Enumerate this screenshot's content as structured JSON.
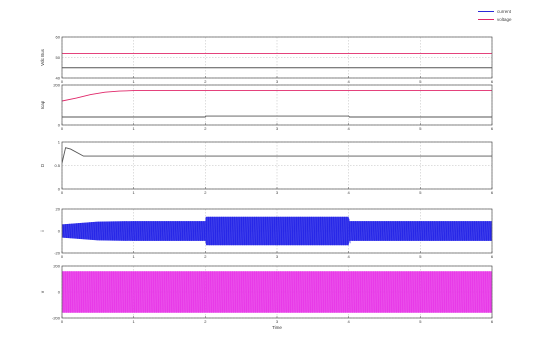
{
  "legend": [
    {
      "label": "current",
      "color": "#2a2ad8"
    },
    {
      "label": "voltage",
      "color": "#e0286a"
    }
  ],
  "colors": {
    "axis": "#555555",
    "grid": "#bdbdbd",
    "trace_red": "#e0286a",
    "trace_blue": "#1a1ae6",
    "trace_magenta": "#e62ee6"
  },
  "chart_data": [
    {
      "type": "line",
      "ylabel": "Vdc Bus",
      "xlabel": "",
      "xlim": [
        0,
        6
      ],
      "ylim": [
        40,
        60
      ],
      "yticks": [
        "60",
        "50",
        "40"
      ],
      "xticks": [
        "0",
        "1",
        "2",
        "3",
        "4",
        "5",
        "6"
      ],
      "grid": true,
      "series": [
        {
          "color": "#e0286a",
          "x": [
            0,
            6
          ],
          "y": [
            52,
            52
          ]
        },
        {
          "color": "#555555",
          "x": [
            0,
            6
          ],
          "y": [
            45,
            45
          ]
        }
      ]
    },
    {
      "type": "line",
      "ylabel": "Icap",
      "xlabel": "",
      "xlim": [
        0,
        6
      ],
      "ylim": [
        -50,
        200
      ],
      "yticks": [
        "200",
        "0"
      ],
      "xticks": [
        "0",
        "1",
        "2",
        "3",
        "4",
        "5",
        "6"
      ],
      "grid": true,
      "series": [
        {
          "color": "#e0286a",
          "x": [
            0,
            0.2,
            0.4,
            0.6,
            0.8,
            1.0,
            6.0
          ],
          "y": [
            100,
            118,
            140,
            155,
            162,
            165,
            165
          ]
        },
        {
          "color": "#555555",
          "x": [
            0,
            2,
            2.01,
            4,
            4.01,
            6
          ],
          "y": [
            0,
            0,
            6,
            6,
            0,
            0
          ]
        }
      ]
    },
    {
      "type": "line",
      "ylabel": "D",
      "xlabel": "",
      "xlim": [
        0,
        6
      ],
      "ylim": [
        0,
        1
      ],
      "yticks": [
        "1",
        "0.5",
        "0"
      ],
      "xticks": [
        "0",
        "1",
        "2",
        "3",
        "4",
        "5",
        "6"
      ],
      "grid": true,
      "series": [
        {
          "color": "#555555",
          "x": [
            0,
            0.05,
            0.12,
            0.3,
            6
          ],
          "y": [
            0.55,
            0.88,
            0.85,
            0.7,
            0.7
          ]
        }
      ]
    },
    {
      "type": "area",
      "ylabel": "i",
      "xlabel": "",
      "xlim": [
        0,
        6
      ],
      "ylim": [
        -20,
        20
      ],
      "yticks": [
        "20",
        "0",
        "-20"
      ],
      "xticks": [
        "0",
        "1",
        "2",
        "3",
        "4",
        "5",
        "6"
      ],
      "grid": true,
      "series": [
        {
          "color": "#1a1ae6",
          "x": [
            0,
            0.5,
            1.0,
            2.0,
            2.01,
            4.0,
            4.01,
            6.0
          ],
          "upper": [
            6,
            8.5,
            9,
            9,
            13,
            13,
            9,
            9
          ],
          "lower": [
            -6,
            -8.5,
            -9,
            -9,
            -13,
            -13,
            -9,
            -9
          ]
        }
      ]
    },
    {
      "type": "area",
      "ylabel": "v",
      "xlabel": "Time",
      "xlim": [
        0,
        6
      ],
      "ylim": [
        -200,
        200
      ],
      "yticks": [
        "200",
        "0",
        "-200"
      ],
      "xticks": [
        "0",
        "1",
        "2",
        "3",
        "4",
        "5",
        "6"
      ],
      "grid": true,
      "series": [
        {
          "color": "#e62ee6",
          "x": [
            0,
            6
          ],
          "upper": [
            160,
            160
          ],
          "lower": [
            -160,
            -160
          ]
        }
      ]
    }
  ]
}
